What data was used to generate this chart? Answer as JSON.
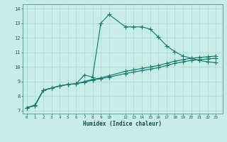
{
  "xlabel": "Humidex (Indice chaleur)",
  "bg_color": "#c8ece8",
  "line_color": "#1a7a6e",
  "grid_color": "#a8d8d0",
  "xlim": [
    -0.5,
    23.8
  ],
  "ylim": [
    6.8,
    14.3
  ],
  "xticks": [
    0,
    1,
    2,
    3,
    4,
    5,
    6,
    7,
    8,
    9,
    10,
    12,
    13,
    14,
    15,
    16,
    17,
    18,
    19,
    20,
    21,
    22,
    23
  ],
  "yticks": [
    7,
    8,
    9,
    10,
    11,
    12,
    13,
    14
  ],
  "curve1_x": [
    0,
    1,
    2,
    3,
    4,
    5,
    6,
    7,
    8,
    9,
    10,
    12,
    13,
    14,
    15,
    16,
    17,
    18,
    19,
    20,
    21,
    22,
    23
  ],
  "curve1_y": [
    7.2,
    7.4,
    8.4,
    8.55,
    8.7,
    8.8,
    8.85,
    9.45,
    9.3,
    13.0,
    13.6,
    12.75,
    12.75,
    12.75,
    12.6,
    12.05,
    11.45,
    11.05,
    10.75,
    10.6,
    10.45,
    10.35,
    10.3
  ],
  "curve2_x": [
    0,
    1,
    2,
    3,
    4,
    5,
    6,
    7,
    8,
    9,
    10,
    12,
    13,
    14,
    15,
    16,
    17,
    18,
    19,
    20,
    21,
    22,
    23
  ],
  "curve2_y": [
    7.2,
    7.35,
    8.4,
    8.55,
    8.7,
    8.8,
    8.85,
    8.95,
    9.1,
    9.2,
    9.3,
    9.55,
    9.65,
    9.75,
    9.85,
    9.95,
    10.1,
    10.25,
    10.35,
    10.45,
    10.5,
    10.55,
    10.6
  ],
  "curve3_x": [
    0,
    1,
    2,
    3,
    4,
    5,
    6,
    7,
    8,
    9,
    10,
    12,
    13,
    14,
    15,
    16,
    17,
    18,
    19,
    20,
    21,
    22,
    23
  ],
  "curve3_y": [
    7.2,
    7.35,
    8.4,
    8.55,
    8.7,
    8.8,
    8.85,
    9.0,
    9.15,
    9.25,
    9.4,
    9.7,
    9.8,
    9.9,
    10.0,
    10.1,
    10.25,
    10.4,
    10.5,
    10.6,
    10.65,
    10.7,
    10.75
  ]
}
